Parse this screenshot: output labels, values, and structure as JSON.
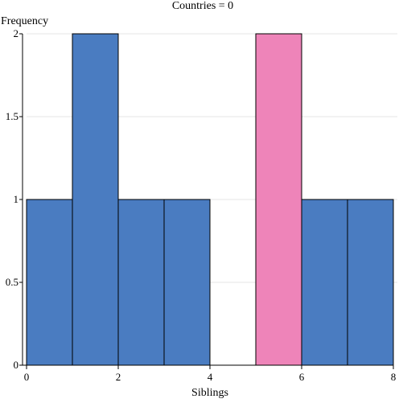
{
  "chart_data": {
    "type": "bar",
    "subtype": "histogram",
    "title": "Countries = 0",
    "xlabel": "Siblings",
    "ylabel": "Frequency",
    "xlim": [
      0,
      8
    ],
    "ylim": [
      0,
      2
    ],
    "x_ticks": [
      0,
      2,
      4,
      6,
      8
    ],
    "y_ticks": [
      0,
      0.5,
      1,
      1.5,
      2
    ],
    "y_tick_labels": [
      "0",
      "0.5",
      "1",
      "1.5",
      "2"
    ],
    "grid": "horizontal",
    "bins": [
      {
        "x0": 0,
        "x1": 1,
        "count": 1,
        "highlighted": false
      },
      {
        "x0": 1,
        "x1": 2,
        "count": 2,
        "highlighted": false
      },
      {
        "x0": 2,
        "x1": 3,
        "count": 1,
        "highlighted": false
      },
      {
        "x0": 3,
        "x1": 4,
        "count": 1,
        "highlighted": false
      },
      {
        "x0": 4,
        "x1": 5,
        "count": 0,
        "highlighted": false
      },
      {
        "x0": 5,
        "x1": 6,
        "count": 2,
        "highlighted": true
      },
      {
        "x0": 6,
        "x1": 7,
        "count": 1,
        "highlighted": false
      },
      {
        "x0": 7,
        "x1": 8,
        "count": 1,
        "highlighted": false
      }
    ],
    "colors": {
      "bar": "#4a7cc1",
      "highlight": "#ee84b9",
      "stroke": "#000000",
      "grid": "#e6e6e6"
    }
  }
}
